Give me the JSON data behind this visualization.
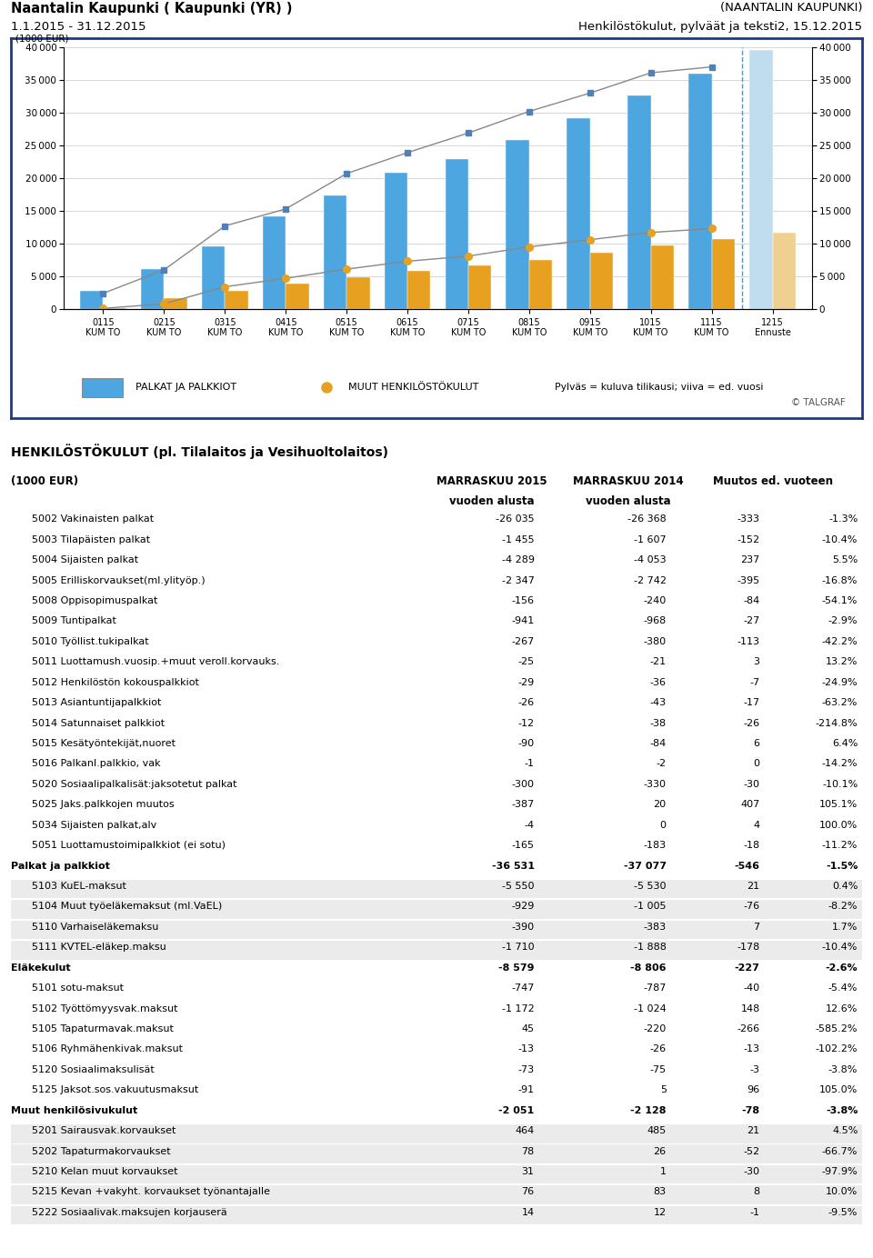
{
  "title_left1": "Naantalin Kaupunki ( Kaupunki (YR) )",
  "title_left2": "1.1.2015 - 31.12.2015",
  "title_right1": "(NAANTALIN KAUPUNKI)",
  "title_right2": "Henkilöstökulut, pylväät ja teksti2, 15.12.2015",
  "chart_ylabel": "(1000 EUR)",
  "chart_ylim": [
    0,
    40000
  ],
  "chart_yticks": [
    0,
    5000,
    10000,
    15000,
    20000,
    25000,
    30000,
    35000,
    40000
  ],
  "x_labels": [
    "0115\nKUM TO",
    "0215\nKUM TO",
    "0315\nKUM TO",
    "0415\nKUM TO",
    "0515\nKUM TO",
    "0615\nKUM TO",
    "0715\nKUM TO",
    "0815\nKUM TO",
    "0915\nKUM TO",
    "1015\nKUM TO",
    "1115\nKUM TO",
    "1215\nEnnuste"
  ],
  "bar_blue": [
    2800,
    6100,
    9600,
    14100,
    17400,
    20900,
    22900,
    25900,
    29200,
    32600,
    36000,
    39600
  ],
  "bar_orange": [
    200,
    1600,
    2800,
    3900,
    4900,
    5900,
    6700,
    7500,
    8600,
    9700,
    10700,
    11700
  ],
  "line_blue": [
    2400,
    6000,
    12700,
    15300,
    20700,
    23900,
    26900,
    30200,
    33000,
    36100,
    37000,
    null
  ],
  "line_orange": [
    100,
    800,
    3400,
    4700,
    6100,
    7300,
    8100,
    9500,
    10600,
    11700,
    12300,
    null
  ],
  "bar_blue_color": "#4da6e0",
  "bar_orange_color": "#e8a020",
  "forecast_bar_blue_color": "#c0ddf0",
  "forecast_bar_orange_color": "#f0d090",
  "line_color": "#888888",
  "legend_label_blue": "PALKAT JA PALKKIOT",
  "legend_label_orange": "MUUT HENKILÖSTÖKULUT",
  "legend_note": "Pylväs = kuluva tilikausi; viiva = ed. vuosi",
  "copyright": "© TALGRAF",
  "outer_border_color": "#1a3a8a",
  "table_title": "HENKILÖSTÖKULUT (pl. Tilalaitos ja Vesihuoltolaitos)",
  "table_rows": [
    [
      "5002 Vakinaisten palkat",
      "-26 035",
      "-26 368",
      "-333",
      "-1.3%",
      false
    ],
    [
      "5003 Tilapäisten palkat",
      "-1 455",
      "-1 607",
      "-152",
      "-10.4%",
      false
    ],
    [
      "5004 Sijaisten palkat",
      "-4 289",
      "-4 053",
      "237",
      "5.5%",
      false
    ],
    [
      "5005 Erilliskorvaukset(ml.ylityöp.)",
      "-2 347",
      "-2 742",
      "-395",
      "-16.8%",
      false
    ],
    [
      "5008 Oppisopimuspalkat",
      "-156",
      "-240",
      "-84",
      "-54.1%",
      false
    ],
    [
      "5009 Tuntipalkat",
      "-941",
      "-968",
      "-27",
      "-2.9%",
      false
    ],
    [
      "5010 Työllist.tukipalkat",
      "-267",
      "-380",
      "-113",
      "-42.2%",
      false
    ],
    [
      "5011 Luottamush.vuosip.+muut veroll.korvauks.",
      "-25",
      "-21",
      "3",
      "13.2%",
      false
    ],
    [
      "5012 Henkilöstön kokouspalkkiot",
      "-29",
      "-36",
      "-7",
      "-24.9%",
      false
    ],
    [
      "5013 Asiantuntijapalkkiot",
      "-26",
      "-43",
      "-17",
      "-63.2%",
      false
    ],
    [
      "5014 Satunnaiset palkkiot",
      "-12",
      "-38",
      "-26",
      "-214.8%",
      false
    ],
    [
      "5015 Kesätyöntekijät,nuoret",
      "-90",
      "-84",
      "6",
      "6.4%",
      false
    ],
    [
      "5016 Palkanl.palkkio, vak",
      "-1",
      "-2",
      "0",
      "-14.2%",
      false
    ],
    [
      "5020 Sosiaalipalkalisät:jaksotetut palkat",
      "-300",
      "-330",
      "-30",
      "-10.1%",
      false
    ],
    [
      "5025 Jaks.palkkojen muutos",
      "-387",
      "20",
      "407",
      "105.1%",
      false
    ],
    [
      "5034 Sijaisten palkat,alv",
      "-4",
      "0",
      "4",
      "100.0%",
      false
    ],
    [
      "5051 Luottamustoimipalkkiot (ei sotu)",
      "-165",
      "-183",
      "-18",
      "-11.2%",
      false
    ],
    [
      "Palkat ja palkkiot",
      "-36 531",
      "-37 077",
      "-546",
      "-1.5%",
      true
    ],
    [
      "5103 KuEL-maksut",
      "-5 550",
      "-5 530",
      "21",
      "0.4%",
      false
    ],
    [
      "5104 Muut työeläkemaksut (ml.VaEL)",
      "-929",
      "-1 005",
      "-76",
      "-8.2%",
      false
    ],
    [
      "5110 Varhaiseläkemaksu",
      "-390",
      "-383",
      "7",
      "1.7%",
      false
    ],
    [
      "5111 KVTEL-eläkep.maksu",
      "-1 710",
      "-1 888",
      "-178",
      "-10.4%",
      false
    ],
    [
      "Eläkekulut",
      "-8 579",
      "-8 806",
      "-227",
      "-2.6%",
      true
    ],
    [
      "5101 sotu-maksut",
      "-747",
      "-787",
      "-40",
      "-5.4%",
      false
    ],
    [
      "5102 Työttömyysvak.maksut",
      "-1 172",
      "-1 024",
      "148",
      "12.6%",
      false
    ],
    [
      "5105 Tapaturmavak.maksut",
      "45",
      "-220",
      "-266",
      "-585.2%",
      false
    ],
    [
      "5106 Ryhmähenkivak.maksut",
      "-13",
      "-26",
      "-13",
      "-102.2%",
      false
    ],
    [
      "5120 Sosiaalimaksulisät",
      "-73",
      "-75",
      "-3",
      "-3.8%",
      false
    ],
    [
      "5125 Jaksot.sos.vakuutusmaksut",
      "-91",
      "5",
      "96",
      "105.0%",
      false
    ],
    [
      "Muut henkilösivukulut",
      "-2 051",
      "-2 128",
      "-78",
      "-3.8%",
      true
    ],
    [
      "5201 Sairausvak.korvaukset",
      "464",
      "485",
      "21",
      "4.5%",
      false
    ],
    [
      "5202 Tapaturmakorvaukset",
      "78",
      "26",
      "-52",
      "-66.7%",
      false
    ],
    [
      "5210 Kelan muut korvaukset",
      "31",
      "1",
      "-30",
      "-97.9%",
      false
    ],
    [
      "5215 Kevan +vakyht. korvaukset työnantajalle",
      "76",
      "83",
      "8",
      "10.0%",
      false
    ],
    [
      "5222 Sosiaalivak.maksujen korjauserä",
      "14",
      "12",
      "-1",
      "-9.5%",
      false
    ]
  ]
}
